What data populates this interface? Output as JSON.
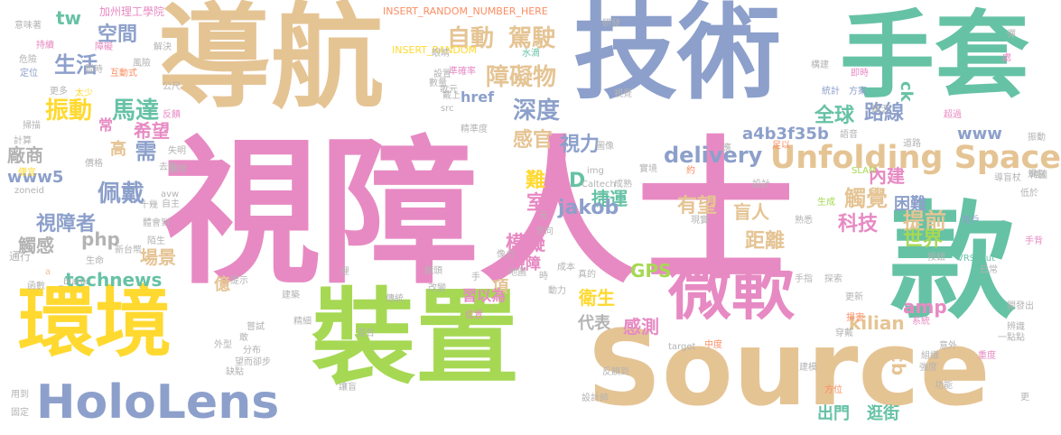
{
  "palette": {
    "pink": "#e78ac3",
    "purple": "#8da0cb",
    "green": "#66c2a5",
    "tan": "#e5c494",
    "yellow": "#ffd92f",
    "lime": "#a6d854",
    "orange": "#fc8d62",
    "gray": "#b3b3b3"
  },
  "words": [
    {
      "text": "視障人士",
      "color": "#e78ac3"
    },
    {
      "text": "導航",
      "color": "#e5c494"
    },
    {
      "text": "技術",
      "color": "#8da0cb"
    },
    {
      "text": "手套",
      "color": "#66c2a5"
    },
    {
      "text": "裝置",
      "color": "#a6d854"
    },
    {
      "text": "款",
      "color": "#66c2a5"
    },
    {
      "text": "Source",
      "color": "#e5c494"
    },
    {
      "text": "環境",
      "color": "#ffd92f"
    },
    {
      "text": "微軟",
      "color": "#e78ac3"
    },
    {
      "text": "HoloLens",
      "color": "#8da0cb"
    },
    {
      "text": "Unfolding Space",
      "color": "#e5c494"
    },
    {
      "text": "振動",
      "color": "#ffd92f"
    },
    {
      "text": "馬達",
      "color": "#66c2a5"
    },
    {
      "text": "自動",
      "color": "#e5c494"
    },
    {
      "text": "駕駛",
      "color": "#e5c494"
    },
    {
      "text": "障礙物",
      "color": "#e5c494"
    },
    {
      "text": "空間",
      "color": "#8da0cb"
    },
    {
      "text": "生活",
      "color": "#8da0cb"
    },
    {
      "text": "tw",
      "color": "#66c2a5"
    },
    {
      "text": "深度",
      "color": "#8da0cb"
    },
    {
      "text": "全球",
      "color": "#66c2a5"
    },
    {
      "text": "路線",
      "color": "#8da0cb"
    },
    {
      "text": "佩戴",
      "color": "#8da0cb"
    },
    {
      "text": "視障者",
      "color": "#8da0cb"
    },
    {
      "text": "www5",
      "color": "#8da0cb"
    },
    {
      "text": "廠商",
      "color": "#b3b3b3"
    },
    {
      "text": "希望",
      "color": "#e78ac3"
    },
    {
      "text": "感官",
      "color": "#e5c494"
    },
    {
      "text": "視力",
      "color": "#8da0cb"
    },
    {
      "text": "delivery",
      "color": "#8da0cb"
    },
    {
      "text": "a4b3f35b",
      "color": "#8da0cb"
    },
    {
      "text": "www",
      "color": "#8da0cb"
    },
    {
      "text": "ck",
      "color": "#66c2a5"
    },
    {
      "text": "困難",
      "color": "#8da0cb"
    },
    {
      "text": "內建",
      "color": "#e78ac3"
    },
    {
      "text": "觸覺",
      "color": "#e5c494"
    },
    {
      "text": "提前",
      "color": "#e5c494"
    },
    {
      "text": "科技",
      "color": "#e78ac3"
    },
    {
      "text": "世界",
      "color": "#a6d854"
    },
    {
      "text": "距離",
      "color": "#e5c494"
    },
    {
      "text": "有望",
      "color": "#e5c494"
    },
    {
      "text": "盲人",
      "color": "#e5c494"
    },
    {
      "text": "捷運",
      "color": "#66c2a5"
    },
    {
      "text": "D",
      "color": "#66c2a5"
    },
    {
      "text": "jakob",
      "color": "#8da0cb"
    },
    {
      "text": "室",
      "color": "#e78ac3"
    },
    {
      "text": "難",
      "color": "#ffd92f"
    },
    {
      "text": "模擬",
      "color": "#e78ac3"
    },
    {
      "text": "php",
      "color": "#b3b3b3"
    },
    {
      "text": "觸感",
      "color": "#b3b3b3"
    },
    {
      "text": "場景",
      "color": "#e5c494"
    },
    {
      "text": "technews",
      "color": "#66c2a5"
    },
    {
      "text": "GPS",
      "color": "#a6d854"
    },
    {
      "text": "衛生",
      "color": "#ffd92f"
    },
    {
      "text": "代表",
      "color": "#b3b3b3"
    },
    {
      "text": "感測",
      "color": "#e78ac3"
    },
    {
      "text": "項",
      "color": "#e5c494"
    },
    {
      "text": "amp",
      "color": "#e78ac3"
    },
    {
      "text": "kilian",
      "color": "#e5c494"
    },
    {
      "text": "cb",
      "color": "#e5c494"
    },
    {
      "text": "出門",
      "color": "#66c2a5"
    },
    {
      "text": "逛街",
      "color": "#66c2a5"
    },
    {
      "text": "億",
      "color": "#e5c494"
    },
    {
      "text": "高",
      "color": "#e5c494"
    },
    {
      "text": "需",
      "color": "#8da0cb"
    },
    {
      "text": "常",
      "color": "#e78ac3"
    },
    {
      "text": "href",
      "color": "#8da0cb"
    },
    {
      "text": "視障",
      "color": "#e78ac3"
    },
    {
      "text": "習以為",
      "color": "#e78ac3"
    },
    {
      "text": "加州理工學院",
      "color": "#e78ac3"
    },
    {
      "text": "INSERT_RANDOM_NUMBER_HERE",
      "color": "#fc8d62"
    },
    {
      "text": "INSERT_RANDOM",
      "color": "#ffd92f"
    },
    {
      "text": "研發",
      "color": "#b3b3b3"
    },
    {
      "text": "準確率",
      "color": "#e78ac3"
    },
    {
      "text": "水滴",
      "color": "#66c2a5"
    },
    {
      "text": "彈",
      "color": "#b3b3b3"
    },
    {
      "text": "處",
      "color": "#e78ac3"
    },
    {
      "text": "構建",
      "color": "#b3b3b3"
    },
    {
      "text": "即時",
      "color": "#e78ac3"
    },
    {
      "text": "方案",
      "color": "#8da0cb"
    },
    {
      "text": "統計",
      "color": "#8da0cb"
    },
    {
      "text": "缺乏",
      "color": "#b3b3b3"
    },
    {
      "text": "超過",
      "color": "#e78ac3"
    },
    {
      "text": "韓國",
      "color": "#b3b3b3"
    },
    {
      "text": "振動",
      "color": "#b3b3b3"
    },
    {
      "text": "規劃",
      "color": "#b3b3b3"
    },
    {
      "text": "導盲杖",
      "color": "#b3b3b3"
    },
    {
      "text": "低於",
      "color": "#b3b3b3"
    },
    {
      "text": "手背",
      "color": "#e78ac3"
    },
    {
      "text": "語音",
      "color": "#b3b3b3"
    },
    {
      "text": "道路",
      "color": "#b3b3b3"
    },
    {
      "text": "足以",
      "color": "#fc8d62"
    },
    {
      "text": "SLAM",
      "color": "#a6d854"
    },
    {
      "text": "生成",
      "color": "#a6d854"
    },
    {
      "text": "熟悉",
      "color": "#b3b3b3"
    },
    {
      "text": "用戶",
      "color": "#8da0cb"
    },
    {
      "text": "VRScout",
      "color": "#66c2a5"
    },
    {
      "text": "按鈕",
      "color": "#b3b3b3"
    },
    {
      "text": "手指",
      "color": "#b3b3b3"
    },
    {
      "text": "探索",
      "color": "#b3b3b3"
    },
    {
      "text": "日常",
      "color": "#b3b3b3"
    },
    {
      "text": "開發出",
      "color": "#b3b3b3"
    },
    {
      "text": "更新",
      "color": "#b3b3b3"
    },
    {
      "text": "系統",
      "color": "#e78ac3"
    },
    {
      "text": "辨識",
      "color": "#b3b3b3"
    },
    {
      "text": "一點點",
      "color": "#b3b3b3"
    },
    {
      "text": "損害",
      "color": "#fc8d62"
    },
    {
      "text": "穿戴",
      "color": "#b3b3b3"
    },
    {
      "text": "意外",
      "color": "#b3b3b3"
    },
    {
      "text": "組織",
      "color": "#b3b3b3"
    },
    {
      "text": "重度",
      "color": "#e78ac3"
    },
    {
      "text": "強度",
      "color": "#b3b3b3"
    },
    {
      "text": "功能",
      "color": "#b3b3b3"
    },
    {
      "text": "更",
      "color": "#b3b3b3"
    },
    {
      "text": "方位",
      "color": "#fc8d62"
    },
    {
      "text": "建模",
      "color": "#b3b3b3"
    },
    {
      "text": "target",
      "color": "#b3b3b3"
    },
    {
      "text": "反饋到",
      "color": "#b3b3b3"
    },
    {
      "text": "設計師",
      "color": "#b3b3b3"
    },
    {
      "text": "中度",
      "color": "#fc8d62"
    },
    {
      "text": "現實",
      "color": "#b3b3b3"
    },
    {
      "text": "意味著",
      "color": "#b3b3b3"
    },
    {
      "text": "持續",
      "color": "#e78ac3"
    },
    {
      "text": "障礙",
      "color": "#e78ac3"
    },
    {
      "text": "危險",
      "color": "#b3b3b3"
    },
    {
      "text": "暫時",
      "color": "#b3b3b3"
    },
    {
      "text": "定位",
      "color": "#8da0cb"
    },
    {
      "text": "互動式",
      "color": "#fc8d62"
    },
    {
      "text": "風險",
      "color": "#b3b3b3"
    },
    {
      "text": "解決",
      "color": "#b3b3b3"
    },
    {
      "text": "更多",
      "color": "#b3b3b3"
    },
    {
      "text": "太少",
      "color": "#ffd92f"
    },
    {
      "text": "公尺",
      "color": "#b3b3b3"
    },
    {
      "text": "反饋",
      "color": "#e78ac3"
    },
    {
      "text": "失明",
      "color": "#b3b3b3"
    },
    {
      "text": "鋼琴",
      "color": "#b3b3b3"
    },
    {
      "text": "價格",
      "color": "#b3b3b3"
    },
    {
      "text": "去年",
      "color": "#b3b3b3"
    },
    {
      "text": "avw",
      "color": "#b3b3b3"
    },
    {
      "text": "自主",
      "color": "#b3b3b3"
    },
    {
      "text": "十幾",
      "color": "#b3b3b3"
    },
    {
      "text": "體會到",
      "color": "#b3b3b3"
    },
    {
      "text": "陌生",
      "color": "#b3b3b3"
    },
    {
      "text": "新台幣",
      "color": "#b3b3b3"
    },
    {
      "text": "通行",
      "color": "#b3b3b3"
    },
    {
      "text": "生命",
      "color": "#b3b3b3"
    },
    {
      "text": "a",
      "color": "#e5c494"
    },
    {
      "text": "_blank",
      "color": "#b3b3b3"
    },
    {
      "text": "函數",
      "color": "#b3b3b3"
    },
    {
      "text": "提示",
      "color": "#b3b3b3"
    },
    {
      "text": "建築",
      "color": "#b3b3b3"
    },
    {
      "text": "嘗試",
      "color": "#b3b3b3"
    },
    {
      "text": "精細",
      "color": "#b3b3b3"
    },
    {
      "text": "外型",
      "color": "#b3b3b3"
    },
    {
      "text": "敢",
      "color": "#b3b3b3"
    },
    {
      "text": "分布",
      "color": "#b3b3b3"
    },
    {
      "text": "望而卻步",
      "color": "#b3b3b3"
    },
    {
      "text": "缺點",
      "color": "#b3b3b3"
    },
    {
      "text": "混合",
      "color": "#b3b3b3"
    },
    {
      "text": "讓盲",
      "color": "#b3b3b3"
    },
    {
      "text": "固定",
      "color": "#b3b3b3"
    },
    {
      "text": "用到",
      "color": "#b3b3b3"
    },
    {
      "text": "掃描",
      "color": "#b3b3b3"
    },
    {
      "text": "zoneid",
      "color": "#b3b3b3"
    },
    {
      "text": "便宜",
      "color": "#ffd92f"
    },
    {
      "text": "計算",
      "color": "#b3b3b3"
    },
    {
      "text": "傳統",
      "color": "#b3b3b3"
    },
    {
      "text": "裡",
      "color": "#b3b3b3"
    },
    {
      "text": "鏡頭",
      "color": "#b3b3b3"
    },
    {
      "text": "改變",
      "color": "#b3b3b3"
    },
    {
      "text": "位置",
      "color": "#e78ac3"
    },
    {
      "text": "地圖",
      "color": "#b3b3b3"
    },
    {
      "text": "時",
      "color": "#b3b3b3"
    },
    {
      "text": "動力",
      "color": "#b3b3b3"
    },
    {
      "text": "成本",
      "color": "#b3b3b3"
    },
    {
      "text": "像力",
      "color": "#b3b3b3"
    },
    {
      "text": "方向",
      "color": "#b3b3b3"
    },
    {
      "text": "元",
      "color": "#b3b3b3"
    },
    {
      "text": "Caltech",
      "color": "#b3b3b3"
    },
    {
      "text": "img",
      "color": "#b3b3b3"
    },
    {
      "text": "圖像",
      "color": "#b3b3b3"
    },
    {
      "text": "實境",
      "color": "#b3b3b3"
    },
    {
      "text": "成熟",
      "color": "#b3b3b3"
    },
    {
      "text": "約",
      "color": "#fc8d62"
    },
    {
      "text": "應",
      "color": "#b3b3b3"
    },
    {
      "text": "設計",
      "color": "#b3b3b3"
    },
    {
      "text": "src",
      "color": "#b3b3b3"
    },
    {
      "text": "戴上",
      "color": "#b3b3b3"
    },
    {
      "text": "精準度",
      "color": "#b3b3b3"
    },
    {
      "text": "設置",
      "color": "#b3b3b3"
    },
    {
      "text": "眼睛",
      "color": "#b3b3b3"
    },
    {
      "text": "歌元",
      "color": "#b3b3b3"
    },
    {
      "text": "數量",
      "color": "#b3b3b3"
    },
    {
      "text": "視覺",
      "color": "#b3b3b3"
    },
    {
      "text": "真的",
      "color": "#b3b3b3"
    },
    {
      "text": "手",
      "color": "#b3b3b3"
    },
    {
      "text": "說",
      "color": "#b3b3b3"
    },
    {
      "text": "n",
      "color": "#e5c494"
    },
    {
      "text": "逼真",
      "color": "#e78ac3"
    },
    {
      "text": "觸點",
      "color": "#b3b3b3"
    }
  ]
}
